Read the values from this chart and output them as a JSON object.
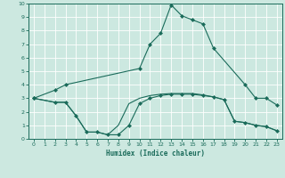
{
  "xlabel": "Humidex (Indice chaleur)",
  "xlim": [
    -0.5,
    23.5
  ],
  "ylim": [
    0,
    10
  ],
  "xticks": [
    0,
    1,
    2,
    3,
    4,
    5,
    6,
    7,
    8,
    9,
    10,
    11,
    12,
    13,
    14,
    15,
    16,
    17,
    18,
    19,
    20,
    21,
    22,
    23
  ],
  "yticks": [
    0,
    1,
    2,
    3,
    4,
    5,
    6,
    7,
    8,
    9,
    10
  ],
  "bg_color": "#cce8e0",
  "line_color": "#1a6b5a",
  "grid_color": "#ffffff",
  "line1_x": [
    0,
    2,
    3,
    10,
    11,
    12,
    13,
    14,
    15,
    16,
    17,
    20,
    21,
    22,
    23
  ],
  "line1_y": [
    3.0,
    3.6,
    4.0,
    5.2,
    7.0,
    7.8,
    9.9,
    9.1,
    8.8,
    8.5,
    6.7,
    4.0,
    3.0,
    3.0,
    2.5
  ],
  "line2_x": [
    0,
    2,
    3,
    4,
    5,
    6,
    7,
    8,
    9,
    10,
    11,
    12,
    13,
    14,
    15,
    16,
    17,
    18,
    19,
    20,
    21,
    22,
    23
  ],
  "line2_y": [
    3.0,
    2.7,
    2.7,
    1.7,
    0.5,
    0.5,
    0.3,
    0.3,
    1.0,
    2.6,
    3.0,
    3.2,
    3.3,
    3.3,
    3.3,
    3.2,
    3.1,
    2.9,
    1.3,
    1.2,
    1.0,
    0.9,
    0.6
  ],
  "line3_x": [
    0,
    2,
    3,
    4,
    5,
    6,
    7,
    8,
    9,
    10,
    11,
    12,
    13,
    14,
    15,
    16,
    17,
    18,
    19,
    20,
    21,
    22,
    23
  ],
  "line3_y": [
    3.0,
    2.7,
    2.7,
    1.7,
    0.5,
    0.5,
    0.3,
    1.0,
    2.6,
    3.0,
    3.2,
    3.3,
    3.35,
    3.35,
    3.35,
    3.25,
    3.1,
    2.9,
    1.3,
    1.2,
    1.0,
    0.9,
    0.6
  ]
}
